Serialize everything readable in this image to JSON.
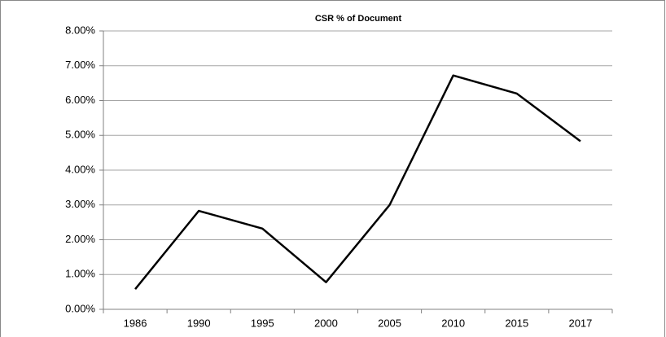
{
  "chart_data": {
    "type": "line",
    "title": "CSR % of Document",
    "categories": [
      "1986",
      "1990",
      "1995",
      "2000",
      "2005",
      "2010",
      "2015",
      "2017"
    ],
    "series": [
      {
        "name": "CSR % of Document",
        "color": "#000000",
        "values": [
          0.58,
          2.83,
          2.32,
          0.78,
          3.0,
          6.72,
          6.2,
          4.83
        ]
      }
    ],
    "ylim": [
      0,
      8
    ],
    "yticks": [
      {
        "value": 0,
        "label": "0.00%"
      },
      {
        "value": 1,
        "label": "1.00%"
      },
      {
        "value": 2,
        "label": "2.00%"
      },
      {
        "value": 3,
        "label": "3.00%"
      },
      {
        "value": 4,
        "label": "4.00%"
      },
      {
        "value": 5,
        "label": "5.00%"
      },
      {
        "value": 6,
        "label": "6.00%"
      },
      {
        "value": 7,
        "label": "7.00%"
      },
      {
        "value": 8,
        "label": "8.00%"
      }
    ],
    "grid": true
  }
}
